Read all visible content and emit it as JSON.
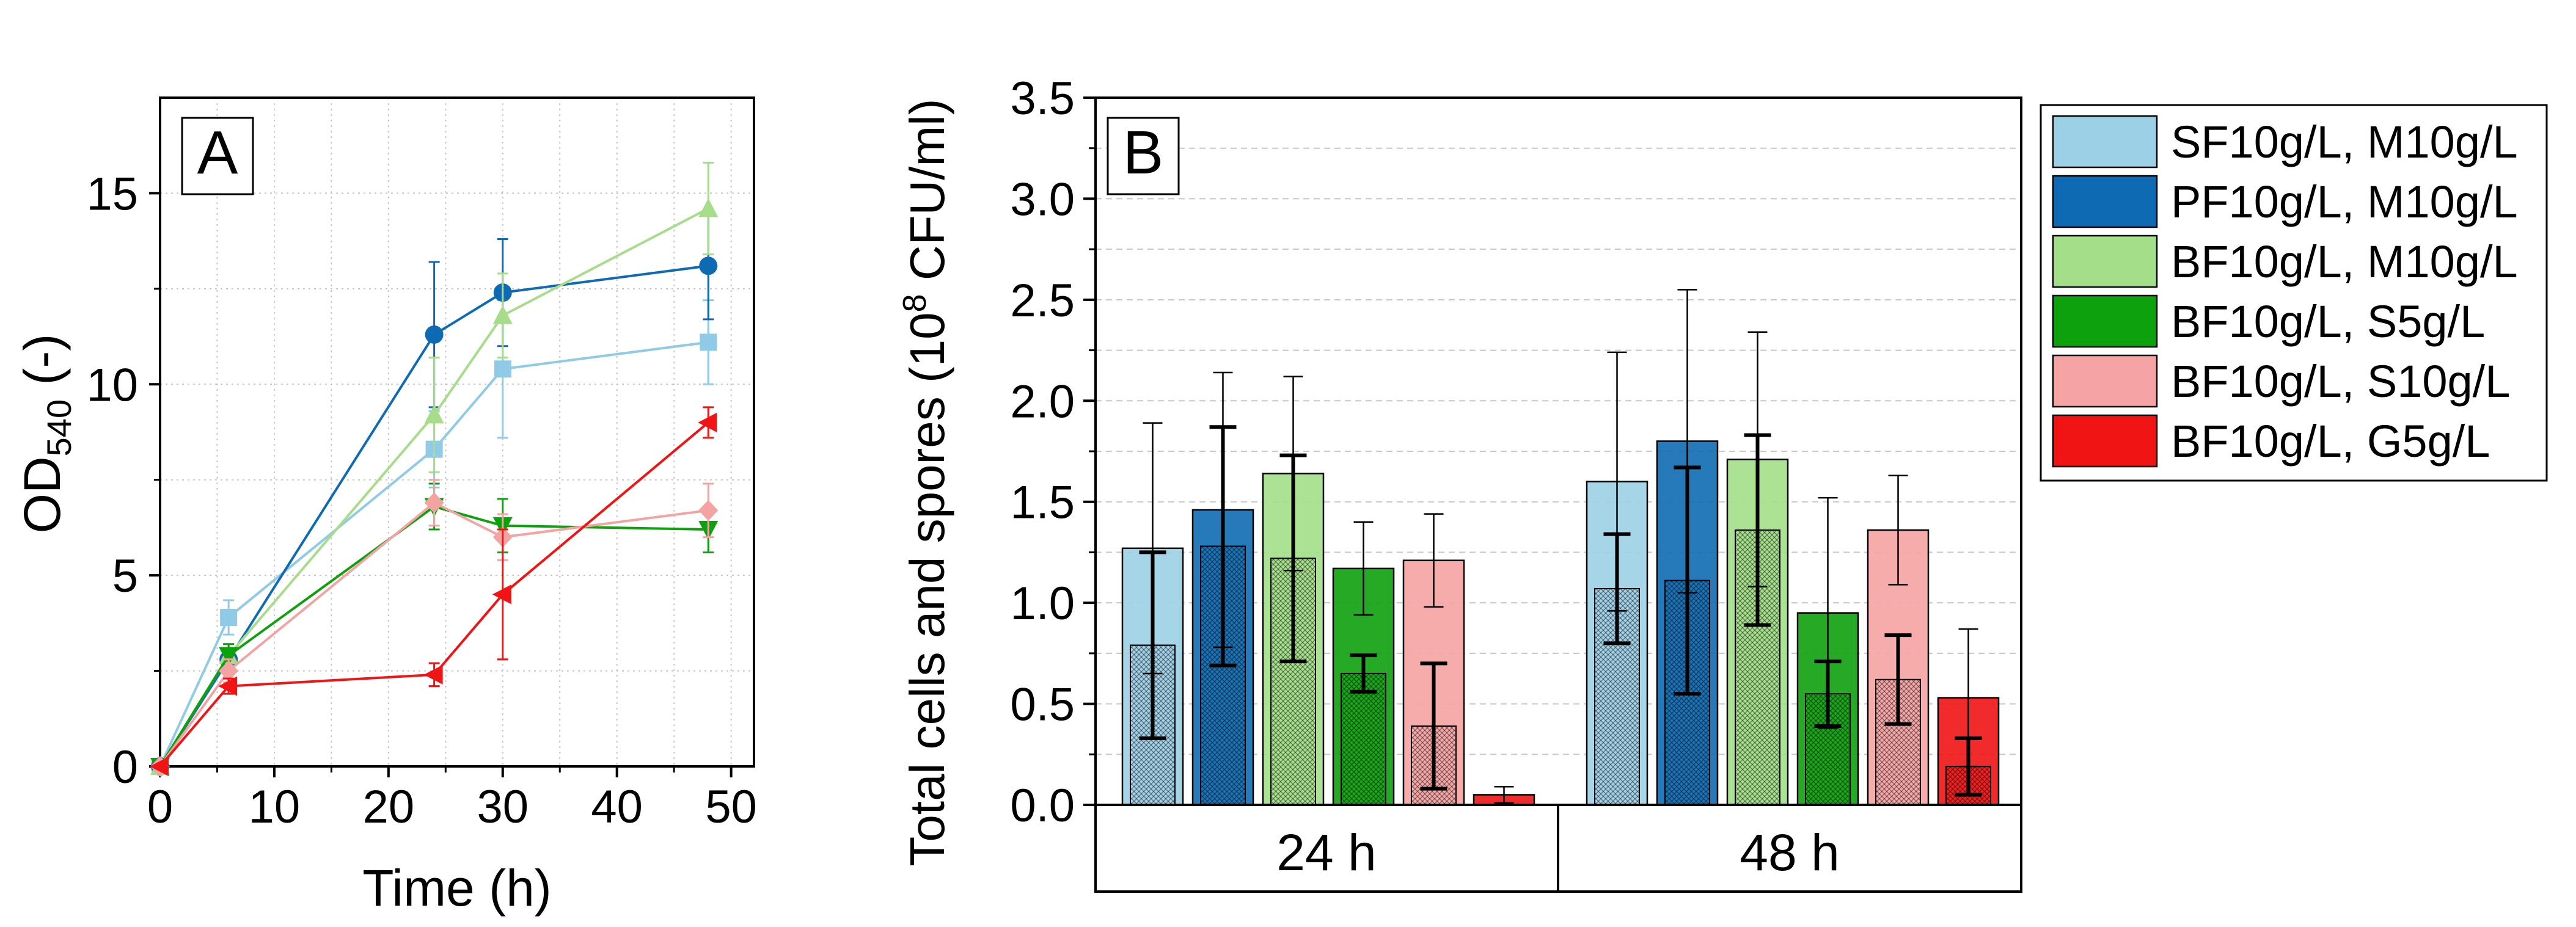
{
  "chart_data": [
    {
      "type": "line",
      "panel_label": "A",
      "xlabel": "Time (h)",
      "ylabel": {
        "main": "OD",
        "sub": "540",
        "suffix": " (-)"
      },
      "xlim": [
        0,
        52
      ],
      "ylim": [
        0,
        17.5
      ],
      "xticks": [
        0,
        10,
        20,
        30,
        40,
        50
      ],
      "yticks": [
        0,
        5,
        10,
        15
      ],
      "grid": true,
      "x": [
        0,
        6,
        24,
        30,
        48
      ],
      "series": [
        {
          "name": "SF10g/L, M10g/L",
          "color": "#8fcbe6",
          "marker": "square",
          "values": [
            0,
            3.9,
            8.3,
            10.4,
            11.1
          ],
          "errors": [
            0,
            0.45,
            1.0,
            1.8,
            1.1
          ]
        },
        {
          "name": "PF10g/L, M10g/L",
          "color": "#0e6bb3",
          "marker": "circle",
          "values": [
            0,
            2.8,
            11.3,
            12.4,
            13.1
          ],
          "errors": [
            0,
            0.3,
            1.9,
            1.4,
            1.4
          ]
        },
        {
          "name": "BF10g/L, M10g/L",
          "color": "#a7dd8a",
          "marker": "triangle-up",
          "values": [
            0,
            2.9,
            9.2,
            11.8,
            14.6
          ],
          "errors": [
            0,
            0.3,
            1.5,
            1.1,
            1.2
          ]
        },
        {
          "name": "BF10g/L, S5g/L",
          "color": "#0ea10e",
          "marker": "triangle-down",
          "values": [
            0,
            2.9,
            6.8,
            6.3,
            6.2
          ],
          "errors": [
            0,
            0.3,
            0.6,
            0.7,
            0.6
          ]
        },
        {
          "name": "BF10g/L, S10g/L",
          "color": "#f4a3a3",
          "marker": "diamond",
          "values": [
            0,
            2.5,
            6.9,
            6.0,
            6.7
          ],
          "errors": [
            0,
            0.3,
            0.6,
            0.6,
            0.7
          ]
        },
        {
          "name": "BF10g/L, G5g/L",
          "color": "#f01414",
          "marker": "triangle-left",
          "values": [
            0,
            2.1,
            2.4,
            4.5,
            9.0
          ],
          "errors": [
            0,
            0.2,
            0.3,
            1.7,
            0.4
          ]
        }
      ]
    },
    {
      "type": "bar",
      "panel_label": "B",
      "ylabel": {
        "pre": "Total cells and spores (10",
        "sup": "8",
        "post": " CFU/ml)"
      },
      "ylim": [
        0,
        3.5
      ],
      "yticks": [
        "0.0",
        "0.5",
        "1.0",
        "1.5",
        "2.0",
        "2.5",
        "3.0",
        "3.5"
      ],
      "grid": true,
      "categories": [
        "24 h",
        "48 h"
      ],
      "legend": {
        "placement": "outside-right"
      },
      "series": [
        {
          "name": "SF10g/L, M10g/L",
          "color": "#9cd0e6",
          "total": [
            1.27,
            1.6
          ],
          "total_err": [
            0.62,
            0.64
          ],
          "spores": [
            0.79,
            1.07
          ],
          "spores_err": [
            0.46,
            0.27
          ]
        },
        {
          "name": "PF10g/L, M10g/L",
          "color": "#0e6bb3",
          "total": [
            1.46,
            1.8
          ],
          "total_err": [
            0.68,
            0.75
          ],
          "spores": [
            1.28,
            1.11
          ],
          "spores_err": [
            0.59,
            0.56
          ]
        },
        {
          "name": "BF10g/L, M10g/L",
          "color": "#a3df88",
          "total": [
            1.64,
            1.71
          ],
          "total_err": [
            0.48,
            0.63
          ],
          "spores": [
            1.22,
            1.36
          ],
          "spores_err": [
            0.51,
            0.47
          ]
        },
        {
          "name": "BF10g/L, S5g/L",
          "color": "#0ea10e",
          "total": [
            1.17,
            0.95
          ],
          "total_err": [
            0.23,
            0.57
          ],
          "spores": [
            0.65,
            0.55
          ],
          "spores_err": [
            0.09,
            0.16
          ]
        },
        {
          "name": "BF10g/L, S10g/L",
          "color": "#f6a3a3",
          "total": [
            1.21,
            1.36
          ],
          "total_err": [
            0.23,
            0.27
          ],
          "spores": [
            0.39,
            0.62
          ],
          "spores_err": [
            0.31,
            0.22
          ]
        },
        {
          "name": "BF10g/L, G5g/L",
          "color": "#f01414",
          "total": [
            0.05,
            0.53
          ],
          "total_err": [
            0.04,
            0.34
          ],
          "spores": [
            0.0,
            0.19
          ],
          "spores_err": [
            0.0,
            0.14
          ]
        }
      ]
    }
  ]
}
